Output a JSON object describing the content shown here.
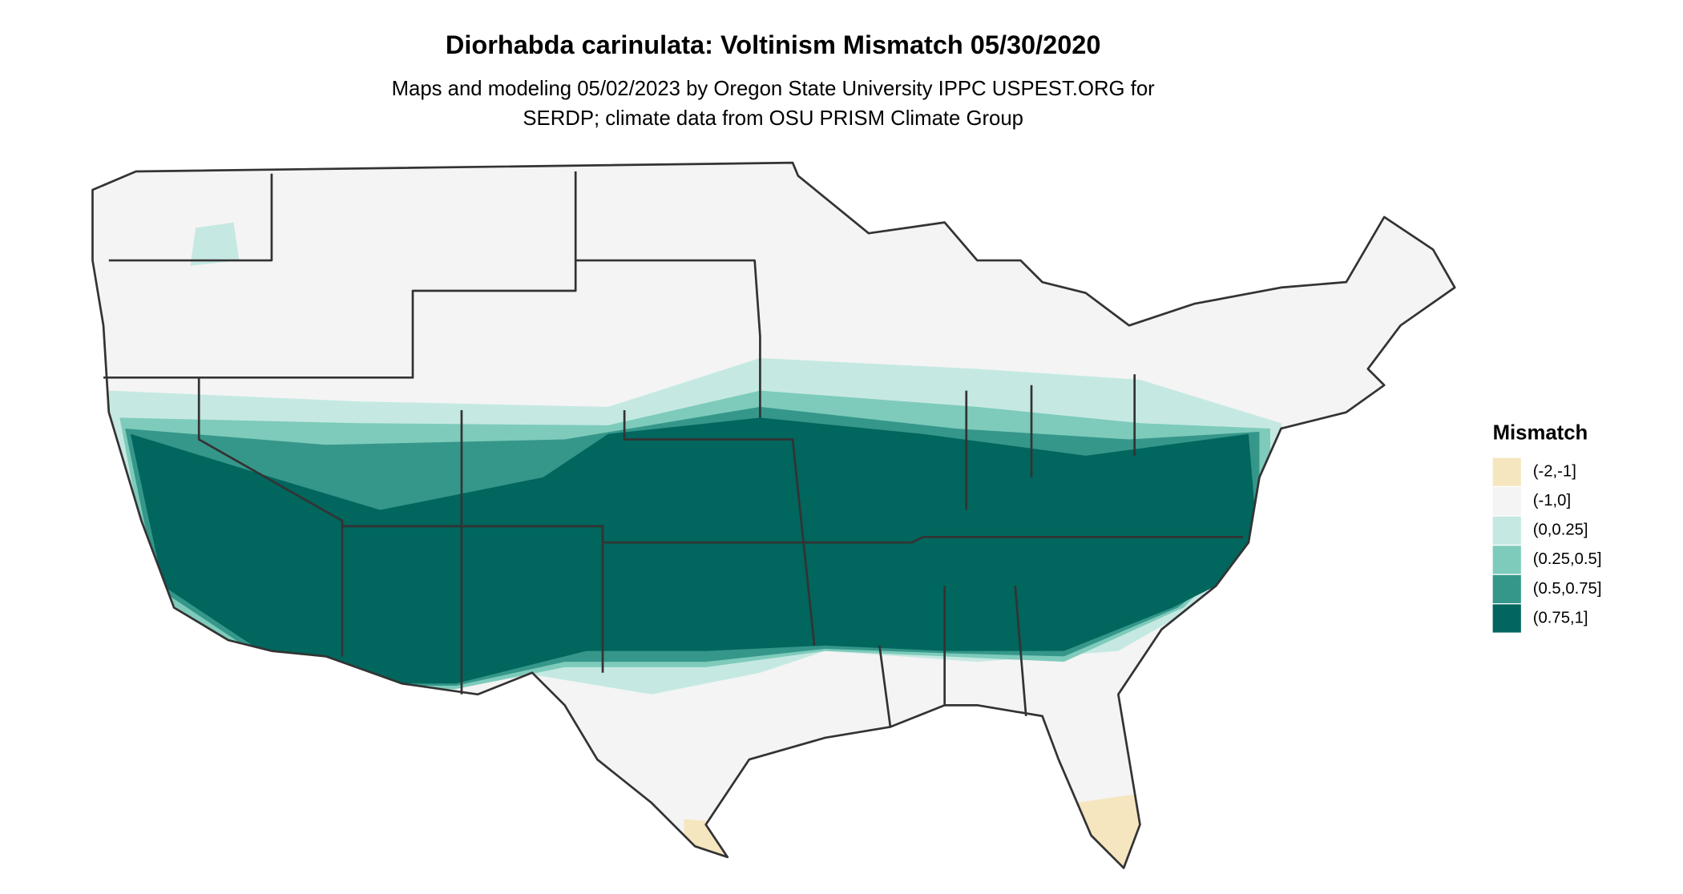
{
  "map": {
    "title": "Diorhabda carinulata: Voltinism Mismatch 05/30/2020",
    "subtitle": [
      "Maps and modeling 05/02/2023 by Oregon State University IPPC USPEST.ORG for",
      "SERDP; climate data from OSU PRISM Climate Group"
    ],
    "legend": {
      "title": "Mismatch",
      "items": [
        {
          "label": "(-2,-1]",
          "color": "#f5e6c0"
        },
        {
          "label": "(-1,0]",
          "color": "#f4f4f4"
        },
        {
          "label": "(0,0.25]",
          "color": "#c5e9e2"
        },
        {
          "label": "(0.25,0.5]",
          "color": "#7ecbbb"
        },
        {
          "label": "(0.5,0.75]",
          "color": "#35978a"
        },
        {
          "label": "(0.75,1]",
          "color": "#01665e"
        }
      ]
    }
  }
}
